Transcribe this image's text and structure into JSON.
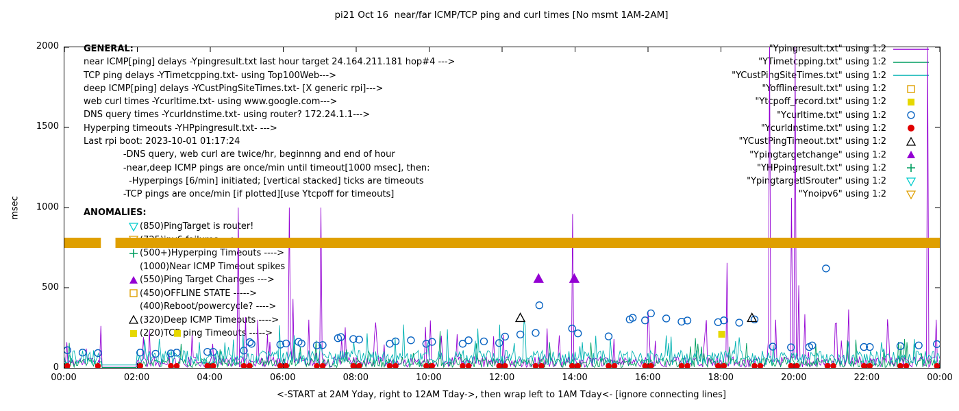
{
  "title": "pi21 Oct 16  near/far ICMP/TCP ping and curl times [No msmt 1AM-2AM]",
  "axes": {
    "ylabel": "msec",
    "y_ticks": [
      0,
      500,
      1000,
      1500,
      2000
    ],
    "x_ticks": [
      "00:00",
      "02:00",
      "04:00",
      "06:00",
      "08:00",
      "10:00",
      "12:00",
      "14:00",
      "16:00",
      "18:00",
      "20:00",
      "22:00",
      "00:00"
    ],
    "caption": "<-START at 2AM Yday, right to 12AM Tday->, then wrap left to 1AM Tday<- [ignore connecting lines]"
  },
  "legend": [
    {
      "label": "\"Ypingresult.txt\" using 1:2",
      "marker": "line",
      "color": "#9400d3"
    },
    {
      "label": "\"YTimetcpping.txt\" using 1:2",
      "marker": "line",
      "color": "#009e60"
    },
    {
      "label": "\"YCustPingSiteTimes.txt\" using 1:2",
      "marker": "line",
      "color": "#00b2b2"
    },
    {
      "label": "\"Yofflineresult.txt\" using 1:2",
      "marker": "square-open",
      "color": "#df9f00"
    },
    {
      "label": "\"Ytcpoff_record.txt\" using 1:2",
      "marker": "square-filled",
      "color": "#e6d800"
    },
    {
      "label": "\"Ycurltime.txt\" using 1:2",
      "marker": "circle-open",
      "color": "#0a64c2"
    },
    {
      "label": "\"Ycurldnstime.txt\" using 1:2",
      "marker": "circle-filled",
      "color": "#e00000"
    },
    {
      "label": "\"YCustPingTimeout.txt\" using 1:2",
      "marker": "tri-up-open",
      "color": "#000000"
    },
    {
      "label": "\"Ypingtargetchange\" using 1:2",
      "marker": "tri-up-filled",
      "color": "#9400d3"
    },
    {
      "label": "\"YHPpingresult.txt\" using 1:2",
      "marker": "plus",
      "color": "#009e60"
    },
    {
      "label": "\"YpingtargetISrouter\" using 1:2",
      "marker": "tri-down-open",
      "color": "#00cccc"
    },
    {
      "label": "\"Ynoipv6\" using 1:2",
      "marker": "tri-down-open",
      "color": "#df9f00"
    }
  ],
  "notes": {
    "general_header": "GENERAL:",
    "general": [
      "near ICMP[ping] delays -Ypingresult.txt last hour target 24.164.211.181 hop#4 --->",
      "TCP ping delays -YTimetcpping.txt- using Top100Web--->",
      "deep ICMP[ping] delays -YCustPingSiteTimes.txt- [X generic rpi]--->",
      "web curl times -Ycurltime.txt- using www.google.com--->",
      "DNS query times -Ycurldnstime.txt- using router? 172.24.1.1--->",
      "Hyperping timeouts -YHPpingresult.txt- --->",
      "Last rpi boot: 2023-10-01 01:17:24",
      "              -DNS query, web curl are twice/hr, beginnng and end of hour",
      "              -near,deep ICMP pings are once/min until timeout[1000 msec], then:",
      "                -Hyperpings [6/min] initiated; [vertical stacked] ticks are timeouts",
      "              -TCP pings are once/min [if plotted][use Ytcpoff for timeouts]"
    ],
    "anomalies_header": "ANOMALIES:",
    "anomalies": [
      {
        "icon": "tri-down-open",
        "color": "#00cccc",
        "text": "(850)PingTarget is router!"
      },
      {
        "icon": "tri-down-open",
        "color": "#df9f00",
        "text": "(725)ipv6 failures --->"
      },
      {
        "icon": "plus",
        "color": "#009e60",
        "text": "(500+)Hyperping Timeouts ---->"
      },
      {
        "icon": null,
        "color": null,
        "text": "(1000)Near ICMP Timeout spikes"
      },
      {
        "icon": "tri-up-filled",
        "color": "#9400d3",
        "text": "(550)Ping Target Changes --->"
      },
      {
        "icon": "square-open",
        "color": "#df9f00",
        "text": "(450)OFFLINE STATE ----->"
      },
      {
        "icon": null,
        "color": null,
        "text": "(400)Reboot/powercycle? ---->"
      },
      {
        "icon": "tri-up-open",
        "color": "#000000",
        "text": "(320)Deep ICMP Timeouts ---->"
      },
      {
        "icon": "square-filled",
        "color": "#e6d800",
        "text": "(220)TCP ping Timeouts ----->"
      }
    ]
  },
  "chart_data": {
    "type": "line",
    "title": "pi21 Oct 16  near/far ICMP/TCP ping and curl times [No msmt 1AM-2AM]",
    "xlabel": "<-START at 2AM Yday, right to 12AM Tday->, then wrap left to 1AM Tday<- [ignore connecting lines]",
    "ylabel": "msec",
    "ylim": [
      0,
      2000
    ],
    "xlim_hours": [
      0,
      24
    ],
    "x_tick_labels": [
      "00:00",
      "02:00",
      "04:00",
      "06:00",
      "08:00",
      "10:00",
      "12:00",
      "14:00",
      "16:00",
      "18:00",
      "20:00",
      "22:00",
      "00:00"
    ],
    "y_tick_values": [
      0,
      500,
      1000,
      1500,
      2000
    ],
    "grid": false,
    "legend_position": "outside-top-right",
    "no_measurement_window": "01:00-02:00",
    "series": [
      {
        "name": "Ypingresult near ICMP ping delay",
        "style": "line",
        "color": "#9400d3",
        "seed": 11,
        "baseline_ms": [
          4,
          70
        ],
        "spike_prob": 0.05,
        "spike_ms": 320,
        "spikes": [
          [
            0.07,
            160
          ],
          [
            0.6,
            120
          ],
          [
            2.33,
            235
          ],
          [
            3.5,
            205
          ],
          [
            4.08,
            150
          ],
          [
            4.75,
            1000
          ],
          [
            5.3,
            300
          ],
          [
            5.55,
            210
          ],
          [
            6.17,
            1000
          ],
          [
            6.27,
            430
          ],
          [
            7.02,
            1000
          ],
          [
            7.6,
            190
          ],
          [
            8.55,
            170
          ],
          [
            9.9,
            255
          ],
          [
            10.75,
            210
          ],
          [
            12.02,
            205
          ],
          [
            13.92,
            960
          ],
          [
            15.05,
            180
          ],
          [
            16.0,
            350
          ],
          [
            17.55,
            230
          ],
          [
            18.15,
            655
          ],
          [
            19.33,
            2000
          ],
          [
            19.5,
            300
          ],
          [
            19.93,
            1060
          ],
          [
            20.03,
            2000
          ],
          [
            20.12,
            515
          ],
          [
            21.3,
            170
          ],
          [
            22.6,
            200
          ],
          [
            23.68,
            2000
          ],
          [
            23.9,
            300
          ]
        ]
      },
      {
        "name": "YTimetcpping TCP ping delay",
        "style": "line",
        "color": "#009e60",
        "seed": 23,
        "baseline_ms": [
          2,
          60
        ],
        "spike_prob": 0.04,
        "spike_ms": 150,
        "spikes": [
          [
            3.2,
            150
          ],
          [
            6.9,
            170
          ],
          [
            10.3,
            230
          ],
          [
            13.3,
            160
          ],
          [
            17.3,
            185
          ],
          [
            20.6,
            150
          ],
          [
            23.1,
            160
          ]
        ]
      },
      {
        "name": "YCustPingSiteTimes deep ICMP delay",
        "style": "line",
        "color": "#00b2b2",
        "seed": 37,
        "baseline_ms": [
          18,
          110
        ],
        "spike_prob": 0.05,
        "spike_ms": 180,
        "spikes": [
          [
            2.6,
            180
          ],
          [
            5.9,
            265
          ],
          [
            8.3,
            215
          ],
          [
            9.05,
            190
          ],
          [
            10.5,
            240
          ],
          [
            12.6,
            300
          ],
          [
            14.55,
            200
          ],
          [
            18.5,
            190
          ],
          [
            21.5,
            165
          ],
          [
            23.3,
            180
          ]
        ]
      },
      {
        "name": "Ycurltime web curl time",
        "style": "circle-open",
        "color": "#0a64c2",
        "points": [
          [
            0.08,
            110
          ],
          [
            0.5,
            95
          ],
          [
            0.92,
            92
          ],
          [
            2.08,
            95
          ],
          [
            2.5,
            88
          ],
          [
            2.92,
            90
          ],
          [
            3.08,
            95
          ],
          [
            3.92,
            100
          ],
          [
            4.08,
            100
          ],
          [
            4.92,
            108
          ],
          [
            5.08,
            160
          ],
          [
            5.13,
            150
          ],
          [
            5.92,
            145
          ],
          [
            6.08,
            152
          ],
          [
            6.42,
            162
          ],
          [
            6.5,
            152
          ],
          [
            6.92,
            140
          ],
          [
            7.08,
            142
          ],
          [
            7.5,
            185
          ],
          [
            7.58,
            192
          ],
          [
            7.92,
            180
          ],
          [
            8.08,
            176
          ],
          [
            8.92,
            150
          ],
          [
            9.08,
            165
          ],
          [
            9.5,
            172
          ],
          [
            9.92,
            150
          ],
          [
            10.08,
            162
          ],
          [
            10.92,
            150
          ],
          [
            11.08,
            172
          ],
          [
            11.5,
            165
          ],
          [
            11.92,
            155
          ],
          [
            12.08,
            195
          ],
          [
            12.5,
            208
          ],
          [
            12.92,
            218
          ],
          [
            13.02,
            390
          ],
          [
            13.92,
            245
          ],
          [
            14.08,
            215
          ],
          [
            14.92,
            196
          ],
          [
            15.5,
            302
          ],
          [
            15.58,
            312
          ],
          [
            15.92,
            296
          ],
          [
            16.08,
            340
          ],
          [
            16.5,
            308
          ],
          [
            16.92,
            288
          ],
          [
            17.08,
            295
          ],
          [
            17.92,
            285
          ],
          [
            18.08,
            296
          ],
          [
            18.5,
            282
          ],
          [
            18.92,
            302
          ],
          [
            19.42,
            132
          ],
          [
            19.92,
            128
          ],
          [
            20.42,
            130
          ],
          [
            20.5,
            140
          ],
          [
            20.88,
            620
          ],
          [
            21.92,
            130
          ],
          [
            22.08,
            130
          ],
          [
            22.92,
            135
          ],
          [
            23.42,
            140
          ],
          [
            23.92,
            148
          ]
        ]
      },
      {
        "name": "Ycurldnstime DNS query time",
        "style": "dot",
        "color": "#e00000",
        "value_ms": 12,
        "times": [
          0.08,
          0.92,
          2.08,
          2.92,
          3.08,
          3.92,
          4.08,
          4.92,
          5.08,
          5.92,
          6.08,
          6.92,
          7.08,
          7.92,
          8.08,
          8.92,
          9.08,
          9.92,
          10.08,
          10.92,
          11.08,
          11.92,
          12.08,
          12.92,
          13.08,
          13.92,
          14.08,
          14.92,
          15.08,
          15.92,
          16.08,
          16.92,
          17.08,
          17.92,
          18.08,
          18.92,
          19.08,
          19.92,
          20.08,
          20.92,
          21.08,
          21.92,
          22.08,
          22.92,
          23.08,
          23.92
        ]
      },
      {
        "name": "YCustPingTimeout deep ICMP timeout",
        "style": "triangle-open",
        "color": "#000000",
        "points": [
          [
            12.5,
            310
          ],
          [
            18.85,
            310
          ]
        ]
      },
      {
        "name": "Ypingtargetchange ping target change",
        "style": "triangle-filled",
        "color": "#9400d3",
        "points": [
          [
            13.0,
            555
          ],
          [
            13.98,
            555
          ]
        ]
      },
      {
        "name": "Ytcpoff_record TCP ping timeout",
        "style": "square-filled",
        "color": "#e6d800",
        "points": [
          [
            3.1,
            215
          ],
          [
            18.02,
            210
          ]
        ]
      },
      {
        "name": "Ynoipv6 no-ipv6 marker band",
        "style": "band",
        "color": "#df9f00",
        "band_ms": [
          748,
          812
        ],
        "segments_hours": [
          [
            0,
            1.0
          ],
          [
            1.4,
            24
          ]
        ]
      }
    ]
  }
}
